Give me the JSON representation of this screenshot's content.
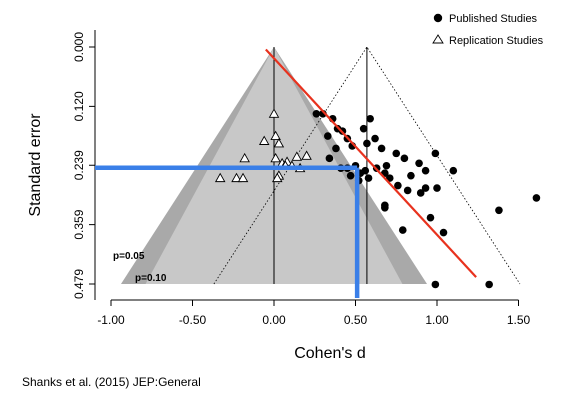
{
  "chart_data": {
    "type": "scatter",
    "subtype": "funnel-plot",
    "xlabel": "Cohen's d",
    "ylabel": "Standard error",
    "xlim": [
      -1.15,
      1.65
    ],
    "ylim": [
      0.479,
      0.0
    ],
    "x_ticks": [
      "-1.00",
      "-0.50",
      "0.00",
      "0.50",
      "1.00",
      "1.50"
    ],
    "y_ticks": [
      "0.000",
      "0.120",
      "0.239",
      "0.359",
      "0.479"
    ],
    "y_inverted": true,
    "funnel_regions": [
      {
        "label": "p=0.05",
        "color": "#a9a9a9"
      },
      {
        "label": "p=0.10",
        "color": "#c8c8c8"
      }
    ],
    "reference_lines": [
      {
        "x": 0.0,
        "type": "vertical"
      },
      {
        "x": 0.57,
        "type": "vertical"
      }
    ],
    "regression_line": {
      "color": "#e8321e",
      "from": [
        -0.05,
        0.005
      ],
      "to": [
        1.24,
        0.465
      ]
    },
    "highlight": {
      "color": "#3a7fe8",
      "x": 0.51,
      "y": 0.244
    },
    "legend": {
      "position": "top-right"
    },
    "series": [
      {
        "name": "Published Studies",
        "marker": "filled-circle",
        "points": [
          [
            0.26,
            0.135
          ],
          [
            0.3,
            0.135
          ],
          [
            0.36,
            0.145
          ],
          [
            0.39,
            0.165
          ],
          [
            0.42,
            0.17
          ],
          [
            0.33,
            0.18
          ],
          [
            0.45,
            0.185
          ],
          [
            0.48,
            0.2
          ],
          [
            0.55,
            0.165
          ],
          [
            0.57,
            0.195
          ],
          [
            0.62,
            0.185
          ],
          [
            0.66,
            0.205
          ],
          [
            0.69,
            0.24
          ],
          [
            0.75,
            0.215
          ],
          [
            0.8,
            0.225
          ],
          [
            0.84,
            0.26
          ],
          [
            0.89,
            0.235
          ],
          [
            0.93,
            0.25
          ],
          [
            0.99,
            0.215
          ],
          [
            0.59,
            0.145
          ],
          [
            0.38,
            0.205
          ],
          [
            0.34,
            0.225
          ],
          [
            0.41,
            0.245
          ],
          [
            0.47,
            0.26
          ],
          [
            0.52,
            0.27
          ],
          [
            0.58,
            0.265
          ],
          [
            0.63,
            0.245
          ],
          [
            0.68,
            0.255
          ],
          [
            0.71,
            0.265
          ],
          [
            0.76,
            0.28
          ],
          [
            0.82,
            0.29
          ],
          [
            0.68,
            0.32
          ],
          [
            0.68,
            0.325
          ],
          [
            0.9,
            0.295
          ],
          [
            0.93,
            0.285
          ],
          [
            1.0,
            0.285
          ],
          [
            1.1,
            0.25
          ],
          [
            0.96,
            0.345
          ],
          [
            0.79,
            0.37
          ],
          [
            1.04,
            0.375
          ],
          [
            1.38,
            0.33
          ],
          [
            1.61,
            0.305
          ],
          [
            0.99,
            0.48
          ],
          [
            1.32,
            0.48
          ],
          [
            0.45,
            0.245
          ],
          [
            0.56,
            0.25
          ],
          [
            0.53,
            0.255
          ],
          [
            0.5,
            0.24
          ]
        ]
      },
      {
        "name": "Replication Studies",
        "marker": "open-triangle",
        "points": [
          [
            0.0,
            0.135
          ],
          [
            0.01,
            0.18
          ],
          [
            -0.06,
            0.19
          ],
          [
            0.03,
            0.195
          ],
          [
            -0.18,
            0.225
          ],
          [
            0.01,
            0.225
          ],
          [
            0.05,
            0.235
          ],
          [
            0.08,
            0.232
          ],
          [
            0.14,
            0.222
          ],
          [
            0.2,
            0.22
          ],
          [
            0.16,
            0.245
          ],
          [
            0.11,
            0.24
          ],
          [
            -0.33,
            0.265
          ],
          [
            -0.23,
            0.265
          ],
          [
            -0.19,
            0.265
          ],
          [
            0.03,
            0.26
          ],
          [
            0.02,
            0.265
          ],
          [
            0.07,
            0.24
          ]
        ]
      }
    ]
  },
  "source": "Shanks et al. (2015) JEP:General"
}
